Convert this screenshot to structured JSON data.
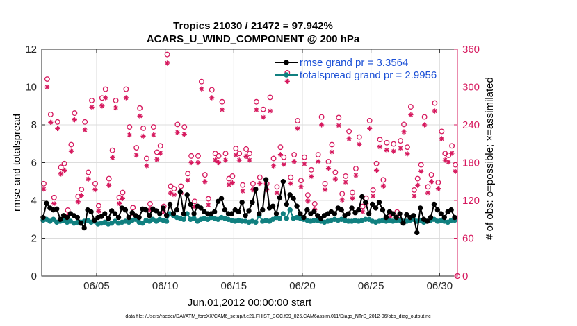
{
  "colors": {
    "rmse": "#000000",
    "totalspread": "#118080",
    "obs": "#d6195e",
    "grid": "#dcdcdc",
    "legend_text": "#1a4fd6"
  },
  "chart_data": {
    "type": "line",
    "title_line1": "Tropics 21030 / 21472 = 97.942%",
    "title_line2": "ACARS_U_WIND_COMPONENT @ 200 hPa",
    "xlabel": "Jun.01,2012 00:00:00 start",
    "ylabel_left": "rmse and totalspread",
    "ylabel_right": "# of obs: o=possible; ×=assimilated",
    "xlim": [
      1.0,
      31.3
    ],
    "ylim_left": [
      0,
      12
    ],
    "ylim_right": [
      0,
      360
    ],
    "x_ticks": [
      5,
      10,
      15,
      20,
      25,
      30
    ],
    "x_tick_labels": [
      "06/05",
      "06/10",
      "06/15",
      "06/20",
      "06/25",
      "06/30"
    ],
    "y_left_ticks": [
      0,
      2,
      4,
      6,
      8,
      10,
      12
    ],
    "y_left_tick_labels": [
      "0",
      "2",
      "4",
      "6",
      "8",
      "10",
      "12"
    ],
    "y_right_ticks": [
      0,
      60,
      120,
      180,
      240,
      300,
      360
    ],
    "y_right_tick_labels": [
      "0",
      "60",
      "120",
      "180",
      "240",
      "300",
      "360"
    ],
    "grid": true,
    "legend": [
      {
        "label": "rmse grand pr = 3.3564",
        "series": "rmse"
      },
      {
        "label": "totalspread grand pr = 2.9956",
        "series": "totalspread"
      }
    ],
    "legend_position": "top-right",
    "footnote": "data file: /Users/raeder/DAI/ATM_forcXX/CAM6_setup/f.e21.FHIST_BGC.f09_025.CAM6assim.011/Diags_NTrS_2012-06/obs_diag_output.nc",
    "series": [
      {
        "name": "rmse",
        "axis": "left",
        "x": [
          1.1,
          1.35,
          1.6,
          1.85,
          2.1,
          2.35,
          2.6,
          2.85,
          3.1,
          3.35,
          3.6,
          3.85,
          4.1,
          4.35,
          4.6,
          4.85,
          5.1,
          5.35,
          5.6,
          5.85,
          6.1,
          6.35,
          6.6,
          6.85,
          7.1,
          7.35,
          7.6,
          7.85,
          8.1,
          8.35,
          8.6,
          8.85,
          9.1,
          9.35,
          9.6,
          9.85,
          10.1,
          10.35,
          10.6,
          10.85,
          11.1,
          11.35,
          11.6,
          11.85,
          12.1,
          12.35,
          12.6,
          12.85,
          13.1,
          13.35,
          13.6,
          13.85,
          14.1,
          14.35,
          14.6,
          14.85,
          15.1,
          15.35,
          15.6,
          15.85,
          16.1,
          16.35,
          16.6,
          16.85,
          17.1,
          17.35,
          17.6,
          17.85,
          18.1,
          18.35,
          18.6,
          18.85,
          19.1,
          19.35,
          19.6,
          19.85,
          20.1,
          20.35,
          20.6,
          20.85,
          21.1,
          21.35,
          21.6,
          21.85,
          22.1,
          22.35,
          22.6,
          22.85,
          23.1,
          23.35,
          23.6,
          23.85,
          24.1,
          24.35,
          24.6,
          24.85,
          25.1,
          25.35,
          25.6,
          25.85,
          26.1,
          26.35,
          26.6,
          26.85,
          27.1,
          27.35,
          27.6,
          27.85,
          28.1,
          28.35,
          28.6,
          28.85,
          29.1,
          29.35,
          29.6,
          29.85,
          30.1,
          30.35,
          30.6,
          30.85,
          31.1
        ],
        "y": [
          3.1,
          3.85,
          3.6,
          3.5,
          3.55,
          3.0,
          3.2,
          3.1,
          3.3,
          3.2,
          3.1,
          2.8,
          2.55,
          3.5,
          3.4,
          2.95,
          3.1,
          3.15,
          3.3,
          3.05,
          3.45,
          3.3,
          3.1,
          3.6,
          3.5,
          3.1,
          3.35,
          3.2,
          3.1,
          3.55,
          3.5,
          3.2,
          3.55,
          3.45,
          3.3,
          3.6,
          3.2,
          3.8,
          3.3,
          3.5,
          4.45,
          3.3,
          4.3,
          3.8,
          3.3,
          3.7,
          3.6,
          3.4,
          3.3,
          3.3,
          3.4,
          3.95,
          4.1,
          3.5,
          3.3,
          3.3,
          3.5,
          3.4,
          3.9,
          3.2,
          3.45,
          3.9,
          4.6,
          3.3,
          3.5,
          5.1,
          3.6,
          3.7,
          3.3,
          4.15,
          5.0,
          3.8,
          4.3,
          4.1,
          3.7,
          3.3,
          3.1,
          3.5,
          3.3,
          3.4,
          3.2,
          3.05,
          3.2,
          3.3,
          3.4,
          3.3,
          3.6,
          3.5,
          3.2,
          3.3,
          3.6,
          3.35,
          3.5,
          4.2,
          3.9,
          3.3,
          3.8,
          3.6,
          3.9,
          3.5,
          3.1,
          3.4,
          3.3,
          3.1,
          3.3,
          2.8,
          3.25,
          3.1,
          3.2,
          2.3,
          3.6,
          3.0,
          2.9,
          3.1,
          3.8,
          3.5,
          3.3,
          3.1,
          3.4,
          3.5,
          3.1
        ]
      },
      {
        "name": "totalspread",
        "axis": "left",
        "x": [
          1.1,
          1.35,
          1.6,
          1.85,
          2.1,
          2.35,
          2.6,
          2.85,
          3.1,
          3.35,
          3.6,
          3.85,
          4.1,
          4.35,
          4.6,
          4.85,
          5.1,
          5.35,
          5.6,
          5.85,
          6.1,
          6.35,
          6.6,
          6.85,
          7.1,
          7.35,
          7.6,
          7.85,
          8.1,
          8.35,
          8.6,
          8.85,
          9.1,
          9.35,
          9.6,
          9.85,
          10.1,
          10.35,
          10.6,
          10.85,
          11.1,
          11.35,
          11.6,
          11.85,
          12.1,
          12.35,
          12.6,
          12.85,
          13.1,
          13.35,
          13.6,
          13.85,
          14.1,
          14.35,
          14.6,
          14.85,
          15.1,
          15.35,
          15.6,
          15.85,
          16.1,
          16.35,
          16.6,
          16.85,
          17.1,
          17.35,
          17.6,
          17.85,
          18.1,
          18.35,
          18.6,
          18.85,
          19.1,
          19.35,
          19.6,
          19.85,
          20.1,
          20.35,
          20.6,
          20.85,
          21.1,
          21.35,
          21.6,
          21.85,
          22.1,
          22.35,
          22.6,
          22.85,
          23.1,
          23.35,
          23.6,
          23.85,
          24.1,
          24.35,
          24.6,
          24.85,
          25.1,
          25.35,
          25.6,
          25.85,
          26.1,
          26.35,
          26.6,
          26.85,
          27.1,
          27.35,
          27.6,
          27.85,
          28.1,
          28.35,
          28.6,
          28.85,
          29.1,
          29.35,
          29.6,
          29.85,
          30.1,
          30.35,
          30.6,
          30.85,
          31.1
        ],
        "y": [
          2.95,
          3.0,
          2.9,
          3.0,
          2.85,
          2.9,
          2.95,
          2.85,
          2.9,
          2.8,
          2.85,
          2.85,
          2.9,
          2.95,
          2.85,
          2.9,
          2.75,
          2.8,
          2.85,
          2.75,
          2.8,
          2.9,
          2.8,
          2.85,
          2.9,
          2.85,
          2.95,
          3.0,
          2.85,
          2.8,
          2.95,
          2.9,
          3.0,
          2.9,
          3.0,
          2.95,
          2.9,
          3.3,
          3.2,
          3.1,
          3.05,
          3.0,
          3.3,
          3.0,
          3.05,
          2.9,
          3.0,
          3.05,
          3.0,
          3.1,
          3.05,
          3.0,
          3.1,
          3.05,
          3.0,
          2.95,
          2.9,
          2.95,
          2.9,
          2.9,
          2.85,
          2.9,
          2.85,
          3.2,
          2.9,
          2.95,
          2.9,
          3.0,
          3.1,
          3.05,
          3.3,
          3.05,
          3.5,
          3.05,
          3.1,
          3.05,
          3.0,
          2.95,
          2.9,
          2.95,
          2.95,
          2.9,
          2.85,
          2.9,
          2.95,
          3.0,
          2.95,
          3.0,
          2.95,
          2.9,
          2.9,
          2.95,
          2.9,
          2.95,
          3.0,
          3.0,
          2.9,
          2.85,
          2.9,
          2.95,
          2.9,
          2.95,
          2.9,
          2.95,
          2.95,
          2.9,
          2.9,
          2.95,
          3.0,
          2.9,
          2.95,
          2.85,
          2.9,
          2.95,
          3.0,
          2.9,
          2.95,
          2.9,
          2.85,
          2.95,
          2.95
        ]
      },
      {
        "name": "obs_possible",
        "axis": "right",
        "marker": "circle",
        "x": [
          1.15,
          1.4,
          1.65,
          1.9,
          2.15,
          2.4,
          2.65,
          2.9,
          3.15,
          3.4,
          3.65,
          3.9,
          4.15,
          4.4,
          4.65,
          4.9,
          5.15,
          5.4,
          5.65,
          5.9,
          6.15,
          6.4,
          6.65,
          6.9,
          7.15,
          7.4,
          7.65,
          7.9,
          8.15,
          8.4,
          8.65,
          8.9,
          9.15,
          9.4,
          9.65,
          9.9,
          10.15,
          10.4,
          10.65,
          10.9,
          11.15,
          11.4,
          11.65,
          11.9,
          12.15,
          12.4,
          12.65,
          12.9,
          13.15,
          13.4,
          13.65,
          13.9,
          14.15,
          14.4,
          14.65,
          14.9,
          15.15,
          15.4,
          15.65,
          15.9,
          16.15,
          16.4,
          16.65,
          16.9,
          17.15,
          17.4,
          17.65,
          17.9,
          18.15,
          18.4,
          18.65,
          18.9,
          19.15,
          19.4,
          19.65,
          19.9,
          20.15,
          20.4,
          20.65,
          20.9,
          21.15,
          21.4,
          21.65,
          21.9,
          22.15,
          22.4,
          22.65,
          22.9,
          23.15,
          23.4,
          23.65,
          23.9,
          24.15,
          24.4,
          24.65,
          24.9,
          25.15,
          25.4,
          25.65,
          25.9,
          26.15,
          26.4,
          26.65,
          26.9,
          27.15,
          27.4,
          27.65,
          27.9,
          28.15,
          28.4,
          28.65,
          28.9,
          29.15,
          29.4,
          29.65,
          29.9,
          30.15,
          30.4,
          30.65,
          30.9,
          31.15
        ],
        "y": [
          140,
          306,
          250,
          118,
          238,
          166,
          172,
          98,
          202,
          252,
          120,
          131,
          238,
          158,
          272,
          140,
          105,
          276,
          290,
          148,
          193,
          272,
          118,
          126,
          290,
          230,
          102,
          197,
          260,
          228,
          180,
          108,
          230,
          190,
          200,
          104,
          345,
          136,
          132,
          234,
          136,
          230,
          156,
          184,
          112,
          184,
          302,
          154,
          116,
          289,
          188,
          184,
          270,
          188,
          148,
          152,
          196,
          188,
          138,
          195,
          188,
          140,
          270,
          150,
          258,
          140,
          277,
          180,
          135,
          198,
          182,
          316,
          150,
          186,
          240,
          145,
          182,
          122,
          162,
          108,
          186,
          246,
          140,
          175,
          202,
          158,
          245,
          124,
          152,
          223,
          126,
          164,
          214,
          104,
          117,
          240,
          130,
          172,
          210,
          146,
          205,
          94,
          203,
          95,
          208,
          234,
          198,
          262,
          130,
          148,
          170,
          246,
          135,
          154,
          268,
          142,
          223,
          188,
          185,
          200,
          170
        ]
      },
      {
        "name": "obs_assimilated",
        "axis": "right",
        "marker": "asterisk",
        "x": [
          1.15,
          1.4,
          1.65,
          1.9,
          2.15,
          2.4,
          2.65,
          2.9,
          3.15,
          3.4,
          3.65,
          3.9,
          4.15,
          4.4,
          4.65,
          4.9,
          5.15,
          5.4,
          5.65,
          5.9,
          6.15,
          6.4,
          6.65,
          6.9,
          7.15,
          7.4,
          7.65,
          7.9,
          8.15,
          8.4,
          8.65,
          8.9,
          9.15,
          9.4,
          9.65,
          9.9,
          10.15,
          10.4,
          10.65,
          10.9,
          11.15,
          11.4,
          11.65,
          11.9,
          12.15,
          12.4,
          12.65,
          12.9,
          13.15,
          13.4,
          13.65,
          13.9,
          14.15,
          14.4,
          14.65,
          14.9,
          15.15,
          15.4,
          15.65,
          15.9,
          16.15,
          16.4,
          16.65,
          16.9,
          17.15,
          17.4,
          17.65,
          17.9,
          18.15,
          18.4,
          18.65,
          18.9,
          19.15,
          19.4,
          19.65,
          19.9,
          20.15,
          20.4,
          20.65,
          20.9,
          21.15,
          21.4,
          21.65,
          21.9,
          22.15,
          22.4,
          22.65,
          22.9,
          23.15,
          23.4,
          23.65,
          23.9,
          24.15,
          24.4,
          24.65,
          24.9,
          25.15,
          25.4,
          25.65,
          25.9,
          26.15,
          26.4,
          26.65,
          26.9,
          27.15,
          27.4,
          27.65,
          27.9,
          28.15,
          28.4,
          28.65,
          28.9,
          29.15,
          29.4,
          29.65,
          29.9,
          30.15,
          30.4,
          30.65,
          30.9,
          31.15
        ],
        "y": [
          138,
          300,
          244,
          115,
          234,
          162,
          168,
          96,
          198,
          248,
          118,
          128,
          232,
          154,
          268,
          137,
          103,
          270,
          283,
          144,
          188,
          267,
          115,
          123,
          283,
          224,
          99,
          192,
          254,
          222,
          175,
          105,
          224,
          185,
          195,
          102,
          338,
          132,
          129,
          228,
          132,
          225,
          152,
          180,
          110,
          180,
          297,
          150,
          113,
          283,
          184,
          180,
          264,
          184,
          145,
          148,
          192,
          184,
          135,
          190,
          184,
          137,
          264,
          147,
          252,
          137,
          262,
          175,
          132,
          193,
          177,
          309,
          147,
          182,
          234,
          142,
          178,
          119,
          158,
          105,
          182,
          240,
          137,
          171,
          197,
          154,
          239,
          121,
          149,
          218,
          123,
          160,
          209,
          102,
          115,
          234,
          127,
          168,
          205,
          143,
          200,
          92,
          198,
          93,
          203,
          229,
          194,
          256,
          127,
          144,
          166,
          240,
          132,
          150,
          262,
          139,
          218,
          184,
          181,
          195,
          166
        ]
      }
    ]
  }
}
